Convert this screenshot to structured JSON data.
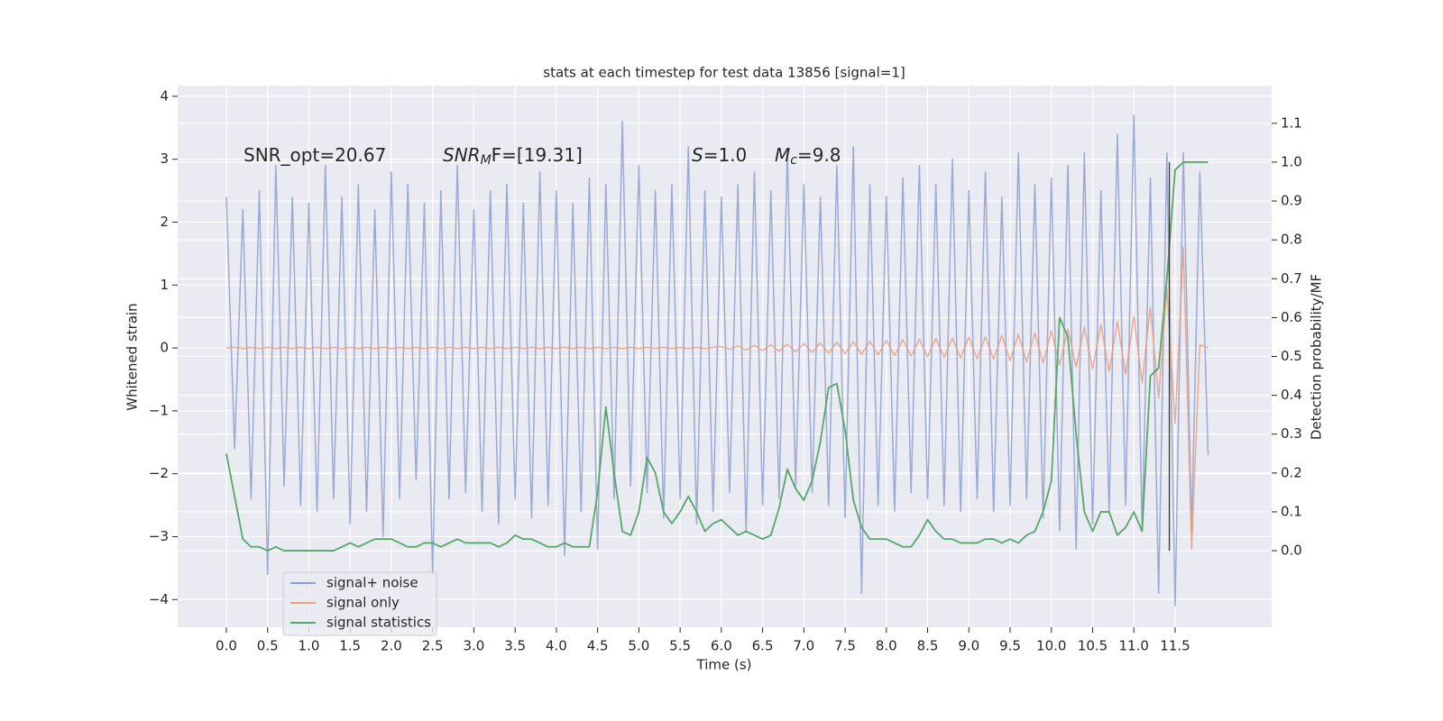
{
  "chart_data": {
    "type": "line",
    "title": "stats at each timestep for test data 13856 [signal=1]",
    "xlabel": "Time (s)",
    "ylabel": "Whitened strain",
    "y2label": "Detection probability/MF",
    "annotations": [
      [
        "SNR_opt=20.67"
      ],
      [
        "SNR",
        "M",
        "F=[19.31]"
      ],
      [
        "S",
        "=1.0"
      ],
      [
        "M",
        "c",
        "=9.8"
      ]
    ],
    "xlim": [
      -0.59,
      12.67
    ],
    "ylim": [
      -4.44,
      4.17
    ],
    "y2lim": [
      -0.197,
      1.197
    ],
    "xticks": [
      {
        "value": 0,
        "label": "0.0"
      },
      {
        "value": 0.5,
        "label": "0.5"
      },
      {
        "value": 1,
        "label": "1.0"
      },
      {
        "value": 1.5,
        "label": "1.5"
      },
      {
        "value": 2,
        "label": "2.0"
      },
      {
        "value": 2.5,
        "label": "2.5"
      },
      {
        "value": 3,
        "label": "3.0"
      },
      {
        "value": 3.5,
        "label": "3.5"
      },
      {
        "value": 4,
        "label": "4.0"
      },
      {
        "value": 4.5,
        "label": "4.5"
      },
      {
        "value": 5,
        "label": "5.0"
      },
      {
        "value": 5.5,
        "label": "5.5"
      },
      {
        "value": 6,
        "label": "6.0"
      },
      {
        "value": 6.5,
        "label": "6.5"
      },
      {
        "value": 7,
        "label": "7.0"
      },
      {
        "value": 7.5,
        "label": "7.5"
      },
      {
        "value": 8,
        "label": "8.0"
      },
      {
        "value": 8.5,
        "label": "8.5"
      },
      {
        "value": 9,
        "label": "9.0"
      },
      {
        "value": 9.5,
        "label": "9.5"
      },
      {
        "value": 10,
        "label": "10.0"
      },
      {
        "value": 10.5,
        "label": "10.5"
      },
      {
        "value": 11,
        "label": "11.0"
      },
      {
        "value": 11.5,
        "label": "11.5"
      }
    ],
    "yticks": [
      {
        "value": -4,
        "label": "−4"
      },
      {
        "value": -3,
        "label": "−3"
      },
      {
        "value": -2,
        "label": "−2"
      },
      {
        "value": -1,
        "label": "−1"
      },
      0,
      1,
      2,
      3,
      4
    ],
    "y2ticks": [
      {
        "value": 0,
        "label": "0.0"
      },
      {
        "value": 0.1,
        "label": "0.1"
      },
      {
        "value": 0.2,
        "label": "0.2"
      },
      {
        "value": 0.3,
        "label": "0.3"
      },
      {
        "value": 0.4,
        "label": "0.4"
      },
      {
        "value": 0.5,
        "label": "0.5"
      },
      {
        "value": 0.6,
        "label": "0.6"
      },
      {
        "value": 0.7,
        "label": "0.7"
      },
      {
        "value": 0.8,
        "label": "0.8"
      },
      {
        "value": 0.9,
        "label": "0.9"
      },
      {
        "value": 1,
        "label": "1.0"
      },
      {
        "value": 1.1,
        "label": "1.1"
      }
    ],
    "grid": true,
    "legend": "lower left",
    "x": [
      0.0,
      0.1,
      0.2,
      0.3,
      0.4,
      0.5,
      0.6,
      0.7,
      0.8,
      0.9,
      1.0,
      1.1,
      1.2,
      1.3,
      1.4,
      1.5,
      1.6,
      1.7,
      1.8,
      1.9,
      2.0,
      2.1,
      2.2,
      2.3,
      2.4,
      2.5,
      2.6,
      2.7,
      2.8,
      2.9,
      3.0,
      3.1,
      3.2,
      3.3,
      3.4,
      3.5,
      3.6,
      3.7,
      3.8,
      3.9,
      4.0,
      4.1,
      4.2,
      4.3,
      4.4,
      4.5,
      4.6,
      4.7,
      4.8,
      4.9,
      5.0,
      5.1,
      5.2,
      5.3,
      5.4,
      5.5,
      5.6,
      5.7,
      5.8,
      5.9,
      6.0,
      6.1,
      6.2,
      6.3,
      6.4,
      6.5,
      6.6,
      6.7,
      6.8,
      6.9,
      7.0,
      7.1,
      7.2,
      7.3,
      7.4,
      7.5,
      7.6,
      7.7,
      7.8,
      7.9,
      8.0,
      8.1,
      8.2,
      8.3,
      8.4,
      8.5,
      8.6,
      8.7,
      8.8,
      8.9,
      9.0,
      9.1,
      9.2,
      9.3,
      9.4,
      9.5,
      9.6,
      9.7,
      9.8,
      9.9,
      10.0,
      10.1,
      10.2,
      10.3,
      10.4,
      10.5,
      10.6,
      10.7,
      10.8,
      10.9,
      11.0,
      11.1,
      11.2,
      11.3,
      11.4,
      11.5,
      11.6,
      11.7,
      11.8,
      11.9
    ],
    "series": [
      {
        "name": "signal+ noise",
        "color": "#8c9fd0",
        "axis": "y",
        "values": [
          2.4,
          -1.6,
          2.2,
          -2.4,
          2.5,
          -3.6,
          2.9,
          -2.2,
          2.4,
          -2.5,
          2.3,
          -2.6,
          2.9,
          -2.4,
          2.4,
          -2.8,
          2.6,
          -2.6,
          2.2,
          -3.0,
          2.8,
          -2.4,
          2.6,
          -2.1,
          2.3,
          -3.6,
          2.5,
          -2.4,
          2.9,
          -2.3,
          2.2,
          -2.6,
          2.5,
          -2.8,
          2.6,
          -2.4,
          2.3,
          -2.7,
          2.8,
          -2.5,
          2.5,
          -3.3,
          2.3,
          -2.6,
          2.7,
          -3.2,
          2.6,
          -2.4,
          3.6,
          -2.2,
          2.9,
          -2.3,
          2.5,
          -2.7,
          2.6,
          -2.4,
          3.2,
          -2.8,
          2.5,
          -2.6,
          2.4,
          -2.3,
          2.6,
          -2.9,
          2.8,
          -2.5,
          2.5,
          -2.4,
          3.1,
          -2.2,
          2.6,
          -2.3,
          2.4,
          -2.5,
          2.9,
          -2.7,
          3.2,
          -3.9,
          2.6,
          -2.5,
          2.4,
          -2.6,
          2.7,
          -2.3,
          2.9,
          -2.4,
          2.6,
          -2.5,
          3.0,
          -2.6,
          2.5,
          -2.4,
          2.8,
          -2.6,
          2.4,
          -2.5,
          3.1,
          -2.4,
          2.6,
          -2.7,
          2.7,
          -2.9,
          2.9,
          -3.2,
          3.1,
          -2.8,
          2.5,
          -2.6,
          3.4,
          -2.5,
          3.7,
          -2.9,
          2.7,
          -3.9,
          3.1,
          -4.1,
          3.1,
          -2.9,
          2.8,
          -1.7
        ]
      },
      {
        "name": "signal only",
        "color": "#e8a07e",
        "axis": "y",
        "values": [
          0,
          0.01,
          -0.01,
          0.01,
          -0.01,
          0.01,
          -0.01,
          0.01,
          -0.01,
          0.01,
          -0.01,
          0.01,
          -0.01,
          0.01,
          -0.01,
          0.01,
          -0.01,
          0.01,
          -0.01,
          0.01,
          -0.01,
          0.01,
          -0.01,
          0.01,
          -0.01,
          0.01,
          -0.01,
          0.01,
          -0.01,
          0.01,
          -0.01,
          0.01,
          -0.01,
          0.01,
          -0.01,
          0.01,
          -0.01,
          0.01,
          -0.01,
          0.01,
          -0.01,
          0.01,
          -0.01,
          0.01,
          -0.01,
          0.01,
          -0.01,
          0.01,
          -0.01,
          0.01,
          -0.01,
          0.01,
          -0.01,
          0.01,
          -0.01,
          0.01,
          -0.01,
          0.01,
          -0.01,
          0.01,
          0.02,
          -0.02,
          0.03,
          -0.03,
          0.04,
          -0.04,
          0.05,
          -0.05,
          0.06,
          -0.06,
          0.07,
          -0.07,
          0.08,
          -0.08,
          0.09,
          -0.09,
          0.1,
          -0.1,
          0.11,
          -0.11,
          0.12,
          -0.12,
          0.13,
          -0.13,
          0.14,
          -0.14,
          0.15,
          -0.15,
          0.16,
          -0.16,
          0.17,
          -0.17,
          0.18,
          -0.18,
          0.2,
          -0.2,
          0.22,
          -0.22,
          0.24,
          -0.24,
          0.27,
          -0.27,
          0.3,
          -0.3,
          0.33,
          -0.33,
          0.37,
          -0.37,
          0.42,
          -0.42,
          0.5,
          -0.55,
          0.65,
          -0.8,
          0.95,
          -1.2,
          1.6,
          -3.2,
          0.05,
          0.0
        ]
      },
      {
        "name": "signal statistics",
        "color": "#55a868",
        "axis": "y2",
        "values": [
          0.25,
          0.14,
          0.03,
          0.01,
          0.01,
          0.0,
          0.01,
          0.0,
          0.0,
          0.0,
          0.0,
          0.0,
          0.0,
          0.0,
          0.01,
          0.02,
          0.01,
          0.02,
          0.03,
          0.03,
          0.03,
          0.02,
          0.01,
          0.01,
          0.02,
          0.02,
          0.01,
          0.02,
          0.03,
          0.02,
          0.02,
          0.02,
          0.02,
          0.01,
          0.02,
          0.04,
          0.03,
          0.03,
          0.02,
          0.01,
          0.01,
          0.02,
          0.01,
          0.01,
          0.01,
          0.15,
          0.37,
          0.2,
          0.05,
          0.04,
          0.1,
          0.24,
          0.2,
          0.1,
          0.07,
          0.1,
          0.14,
          0.1,
          0.05,
          0.07,
          0.08,
          0.06,
          0.04,
          0.05,
          0.04,
          0.03,
          0.04,
          0.11,
          0.21,
          0.16,
          0.13,
          0.18,
          0.28,
          0.42,
          0.43,
          0.31,
          0.13,
          0.06,
          0.03,
          0.03,
          0.03,
          0.02,
          0.01,
          0.01,
          0.04,
          0.08,
          0.05,
          0.03,
          0.03,
          0.02,
          0.02,
          0.02,
          0.03,
          0.03,
          0.02,
          0.03,
          0.02,
          0.04,
          0.05,
          0.1,
          0.18,
          0.6,
          0.55,
          0.3,
          0.1,
          0.05,
          0.1,
          0.1,
          0.04,
          0.06,
          0.1,
          0.05,
          0.45,
          0.47,
          0.7,
          0.98,
          1.0,
          1.0,
          1.0,
          1.0
        ]
      }
    ],
    "vline": {
      "x": 11.43,
      "y2": [
        0,
        1
      ],
      "color": "#333333"
    }
  }
}
